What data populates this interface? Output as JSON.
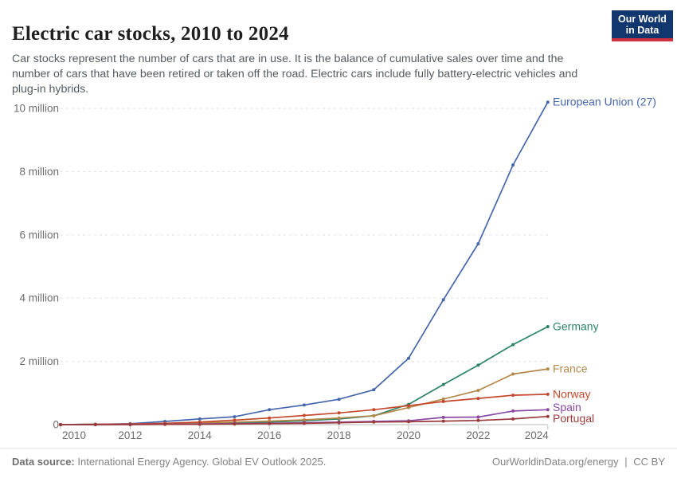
{
  "header": {
    "title": "Electric car stocks, 2010 to 2024",
    "subtitle": "Car stocks represent the number of cars that are in use. It is the balance of cumulative sales over time and the number of cars that have been retired or taken off the road. Electric cars include fully battery-electric vehicles and plug-in hybrids.",
    "logo": {
      "line1": "Our World",
      "line2": "in Data",
      "bg_color": "#12366e",
      "accent_color": "#cf303e"
    }
  },
  "chart_data": {
    "type": "line",
    "title": "Electric car stocks, 2010 to 2024",
    "unit": "million cars",
    "x": [
      2010,
      2011,
      2012,
      2013,
      2014,
      2015,
      2016,
      2017,
      2018,
      2019,
      2020,
      2021,
      2022,
      2023,
      2024
    ],
    "x_tick_labels": [
      "2010",
      "2012",
      "2014",
      "2016",
      "2018",
      "2020",
      "2022",
      "2024"
    ],
    "y_ticks": [
      0,
      2,
      4,
      6,
      8,
      10
    ],
    "y_tick_labels": [
      "0",
      "2 million",
      "4 million",
      "6 million",
      "8 million",
      "10 million"
    ],
    "ylim": [
      0,
      10.3
    ],
    "grid": "horizontal-dashed",
    "legend_position": "end-of-line-labels",
    "series": [
      {
        "name": "European Union (27)",
        "color": "#4767ac",
        "values": [
          0.0,
          0.01,
          0.03,
          0.1,
          0.18,
          0.25,
          0.47,
          0.62,
          0.8,
          1.1,
          2.1,
          3.95,
          5.72,
          8.21,
          10.2
        ]
      },
      {
        "name": "Germany",
        "color": "#2c8465",
        "values": [
          0.0,
          0.01,
          0.01,
          0.02,
          0.03,
          0.05,
          0.08,
          0.12,
          0.18,
          0.28,
          0.64,
          1.27,
          1.88,
          2.53,
          3.1
        ]
      },
      {
        "name": "France",
        "color": "#b4884b",
        "values": [
          0.0,
          0.01,
          0.02,
          0.03,
          0.05,
          0.08,
          0.11,
          0.15,
          0.21,
          0.28,
          0.54,
          0.81,
          1.08,
          1.6,
          1.76
        ]
      },
      {
        "name": "Norway",
        "color": "#c4492c",
        "values": [
          0.0,
          0.01,
          0.02,
          0.04,
          0.08,
          0.14,
          0.21,
          0.29,
          0.37,
          0.47,
          0.6,
          0.73,
          0.83,
          0.93,
          0.96
        ]
      },
      {
        "name": "Spain",
        "color": "#8a49a4",
        "values": [
          0.0,
          0.0,
          0.01,
          0.01,
          0.02,
          0.03,
          0.04,
          0.06,
          0.08,
          0.1,
          0.12,
          0.23,
          0.24,
          0.43,
          0.47
        ]
      },
      {
        "name": "Portugal",
        "color": "#9b3a3c",
        "values": [
          0.0,
          0.0,
          0.0,
          0.01,
          0.01,
          0.02,
          0.03,
          0.04,
          0.06,
          0.08,
          0.09,
          0.11,
          0.13,
          0.18,
          0.26
        ]
      }
    ]
  },
  "footer": {
    "source_label": "Data source:",
    "source_text": "International Energy Agency. Global EV Outlook 2025.",
    "link": "OurWorldinData.org/energy",
    "separator": "|",
    "license": "CC BY"
  }
}
